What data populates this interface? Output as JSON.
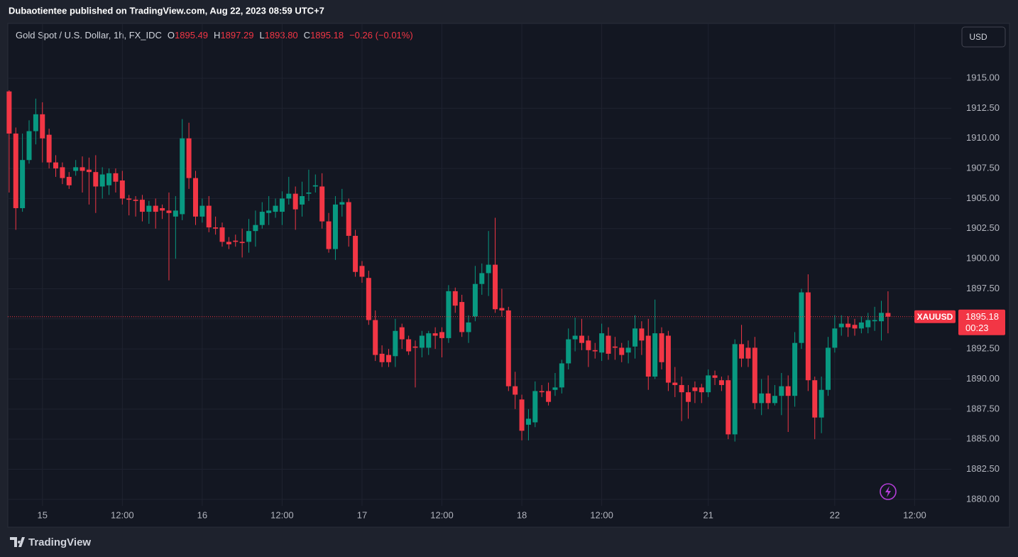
{
  "header": {
    "publisher": "Dubaotientee published on TradingView.com, Aug 22, 2023 08:59 UTC+7"
  },
  "chart_data": {
    "type": "candlestick",
    "title": "Gold Spot / U.S. Dollar, 1h, FX_IDC",
    "ohlc_legend": [
      {
        "key": "O",
        "value": "1895.49"
      },
      {
        "key": "H",
        "value": "1897.29"
      },
      {
        "key": "L",
        "value": "1893.80"
      },
      {
        "key": "C",
        "value": "1895.18"
      }
    ],
    "change_label": "−0.26 (−0.01%)",
    "currency": "USD",
    "up_color": "#089981",
    "down_color": "#f23645",
    "open": [
      1913.9,
      1910.4,
      1904.2,
      1908.2,
      1910.6,
      1912.0,
      1910.3,
      1908.0,
      1907.6,
      1906.8,
      1907.3,
      1907.6,
      1907.4,
      1907.2,
      1906.0,
      1906.1,
      1907.1,
      1906.5,
      1905.0,
      1904.9,
      1904.9,
      1903.9,
      1904.4,
      1904.2,
      1904.0,
      1903.5,
      1903.7,
      1910.0,
      1906.7,
      1903.5,
      1904.4,
      1902.6,
      1902.6,
      1901.4,
      1901.5,
      1901.4,
      1901.4,
      1902.3,
      1902.8,
      1903.8,
      1903.9,
      1903.9,
      1905.0,
      1905.4,
      1904.5,
      1905.4,
      1906.0,
      1906.0,
      1903.1,
      1900.8,
      1904.5,
      1904.7,
      1901.9,
      1899.4,
      1898.4,
      1894.9,
      1892.1,
      1892.0,
      1891.9,
      1894.3,
      1893.3,
      1892.7,
      1892.6,
      1892.6,
      1893.8,
      1893.9,
      1893.4,
      1897.3,
      1896.4,
      1893.9,
      1895.2,
      1897.9,
      1898.8,
      1899.5,
      1895.9,
      1895.7,
      1889.4,
      1888.3,
      1886.2,
      1886.4,
      1889.0,
      1889.0,
      1889.1,
      1889.3,
      1891.3,
      1893.3,
      1893.6,
      1893.2,
      1892.4,
      1892.2,
      1893.6,
      1892.7,
      1892.6,
      1892.2,
      1892.7,
      1894.2,
      1893.6,
      1890.2,
      1893.8,
      1893.6,
      1889.7,
      1889.5,
      1888.9,
      1889.3,
      1889.3,
      1888.9,
      1890.3,
      1889.9,
      1889.9,
      1885.4,
      1892.9,
      1892.6,
      1892.6,
      1888.0,
      1888.8,
      1888.0,
      1888.6,
      1889.4,
      1888.6,
      1893.0,
      1897.2,
      1889.9,
      1886.8,
      1889.1,
      1892.6,
      1894.3,
      1894.6,
      1894.5,
      1894.2,
      1894.3,
      1894.8,
      1894.8,
      1895.49
    ],
    "high": [
      1914.0,
      1910.9,
      1910.4,
      1911.5,
      1913.3,
      1913.0,
      1910.8,
      1908.6,
      1908.0,
      1907.2,
      1908.2,
      1908.5,
      1908.4,
      1908.6,
      1907.6,
      1907.5,
      1907.5,
      1907.3,
      1905.3,
      1905.2,
      1905.3,
      1904.8,
      1905.0,
      1904.5,
      1905.5,
      1905.2,
      1911.6,
      1911.3,
      1907.3,
      1905.0,
      1905.2,
      1903.5,
      1903.0,
      1901.8,
      1902.0,
      1902.5,
      1903.3,
      1904.0,
      1904.7,
      1905.2,
      1905.0,
      1905.6,
      1906.8,
      1906.0,
      1906.4,
      1907.4,
      1907.0,
      1907.1,
      1903.8,
      1905.2,
      1905.8,
      1905.0,
      1902.4,
      1899.8,
      1899.0,
      1895.7,
      1892.8,
      1892.5,
      1895.0,
      1894.6,
      1893.6,
      1893.2,
      1894.0,
      1894.0,
      1894.3,
      1894.3,
      1897.8,
      1897.6,
      1897.0,
      1895.3,
      1899.4,
      1899.6,
      1902.3,
      1903.4,
      1897.5,
      1896.0,
      1890.6,
      1888.7,
      1887.5,
      1889.8,
      1889.5,
      1889.7,
      1890.5,
      1891.6,
      1894.2,
      1895.1,
      1895.0,
      1893.6,
      1893.0,
      1894.6,
      1894.3,
      1893.5,
      1893.0,
      1893.2,
      1895.3,
      1894.8,
      1895.0,
      1896.6,
      1894.3,
      1894.0,
      1891.0,
      1890.2,
      1889.5,
      1889.8,
      1889.6,
      1890.8,
      1890.7,
      1890.2,
      1890.3,
      1893.3,
      1894.5,
      1893.2,
      1893.5,
      1890.0,
      1890.3,
      1889.5,
      1890.5,
      1890.3,
      1893.9,
      1897.5,
      1898.7,
      1890.2,
      1890.2,
      1893.5,
      1895.3,
      1895.3,
      1895.2,
      1895.0,
      1895.2,
      1895.5,
      1896.0,
      1896.5,
      1897.29
    ],
    "low": [
      1905.5,
      1902.4,
      1903.9,
      1907.9,
      1909.5,
      1908.0,
      1907.5,
      1906.8,
      1906.2,
      1905.8,
      1906.9,
      1905.5,
      1904.5,
      1903.8,
      1905.0,
      1905.3,
      1905.5,
      1904.5,
      1903.6,
      1903.5,
      1903.1,
      1902.9,
      1902.5,
      1903.3,
      1898.2,
      1900.0,
      1903.2,
      1905.8,
      1902.8,
      1903.0,
      1902.2,
      1902.0,
      1901.0,
      1900.8,
      1901.0,
      1900.1,
      1900.5,
      1901.0,
      1902.5,
      1902.8,
      1903.4,
      1902.8,
      1904.5,
      1902.4,
      1903.5,
      1904.8,
      1905.5,
      1902.5,
      1900.5,
      1899.9,
      1903.5,
      1901.0,
      1898.5,
      1898.0,
      1894.5,
      1891.5,
      1891.0,
      1891.0,
      1891.0,
      1892.5,
      1892.0,
      1889.3,
      1891.8,
      1892.0,
      1892.5,
      1891.8,
      1893.0,
      1895.5,
      1893.5,
      1893.0,
      1894.8,
      1897.0,
      1896.9,
      1895.5,
      1895.2,
      1889.0,
      1887.5,
      1884.9,
      1884.9,
      1886.0,
      1888.5,
      1887.8,
      1888.6,
      1888.8,
      1890.8,
      1892.3,
      1892.4,
      1891.0,
      1891.7,
      1891.5,
      1891.6,
      1891.6,
      1891.4,
      1891.3,
      1891.7,
      1892.0,
      1889.1,
      1890.0,
      1890.8,
      1889.0,
      1888.5,
      1886.5,
      1886.7,
      1888.0,
      1888.0,
      1888.5,
      1889.5,
      1889.0,
      1885.0,
      1884.8,
      1891.0,
      1891.0,
      1887.5,
      1887.0,
      1887.5,
      1887.8,
      1887.0,
      1885.6,
      1887.7,
      1892.5,
      1889.0,
      1885.0,
      1885.5,
      1888.6,
      1892.2,
      1893.6,
      1893.5,
      1893.6,
      1893.8,
      1893.8,
      1894.0,
      1893.2,
      1893.8
    ],
    "close": [
      1910.4,
      1904.2,
      1908.2,
      1910.6,
      1912.0,
      1910.0,
      1908.0,
      1907.5,
      1906.7,
      1906.1,
      1907.6,
      1907.3,
      1907.2,
      1906.0,
      1907.0,
      1907.1,
      1906.4,
      1905.0,
      1904.9,
      1904.8,
      1903.9,
      1904.4,
      1903.9,
      1904.0,
      1903.8,
      1904.0,
      1910.0,
      1906.7,
      1903.5,
      1904.4,
      1902.6,
      1902.5,
      1901.4,
      1901.2,
      1901.4,
      1901.3,
      1902.3,
      1902.8,
      1903.9,
      1904.0,
      1904.4,
      1905.0,
      1905.4,
      1904.1,
      1905.2,
      1905.5,
      1906.1,
      1903.1,
      1900.8,
      1904.5,
      1904.7,
      1901.9,
      1898.9,
      1898.5,
      1894.9,
      1892.0,
      1891.4,
      1891.4,
      1894.0,
      1893.3,
      1892.3,
      1892.6,
      1893.6,
      1893.8,
      1893.6,
      1893.4,
      1897.3,
      1896.1,
      1893.9,
      1894.7,
      1897.9,
      1898.8,
      1899.5,
      1895.8,
      1895.7,
      1889.4,
      1888.7,
      1885.7,
      1886.7,
      1889.0,
      1888.9,
      1888.1,
      1889.3,
      1891.3,
      1893.3,
      1893.6,
      1893.0,
      1892.4,
      1892.3,
      1893.8,
      1892.1,
      1892.6,
      1892.0,
      1892.6,
      1894.2,
      1893.2,
      1890.2,
      1893.8,
      1891.4,
      1889.7,
      1889.5,
      1888.9,
      1888.1,
      1889.0,
      1888.9,
      1890.3,
      1890.1,
      1889.5,
      1885.4,
      1892.9,
      1891.7,
      1891.7,
      1888.0,
      1888.8,
      1888.0,
      1888.6,
      1889.4,
      1888.6,
      1893.0,
      1897.2,
      1889.9,
      1886.8,
      1889.1,
      1892.6,
      1894.2,
      1894.6,
      1894.3,
      1894.2,
      1894.7,
      1894.9,
      1894.9,
      1895.5,
      1895.18
    ],
    "xlim": [
      -0.2,
      141.5
    ],
    "xticks": [
      {
        "value": 5,
        "label": "15"
      },
      {
        "value": 17,
        "label": "12:00"
      },
      {
        "value": 29,
        "label": "16"
      },
      {
        "value": 41,
        "label": "12:00"
      },
      {
        "value": 53,
        "label": "17"
      },
      {
        "value": 65,
        "label": "12:00"
      },
      {
        "value": 77,
        "label": "18"
      },
      {
        "value": 89,
        "label": "12:00"
      },
      {
        "value": 105,
        "label": "21"
      },
      {
        "value": 124,
        "label": "22"
      },
      {
        "value": 136,
        "label": "12:00"
      }
    ],
    "ylim": [
      1879.46,
      1919.55
    ],
    "yticks": [
      {
        "value": 1880,
        "label": "1880.00"
      },
      {
        "value": 1882.5,
        "label": "1882.50"
      },
      {
        "value": 1885,
        "label": "1885.00"
      },
      {
        "value": 1887.5,
        "label": "1887.50"
      },
      {
        "value": 1890,
        "label": "1890.00"
      },
      {
        "value": 1892.5,
        "label": "1892.50"
      },
      {
        "value": 1895,
        "label": "1895.00"
      },
      {
        "value": 1897.5,
        "label": "1897.50"
      },
      {
        "value": 1900,
        "label": "1900.00"
      },
      {
        "value": 1902.5,
        "label": "1902.50"
      },
      {
        "value": 1905,
        "label": "1905.00"
      },
      {
        "value": 1907.5,
        "label": "1907.50"
      },
      {
        "value": 1910,
        "label": "1910.00"
      },
      {
        "value": 1912.5,
        "label": "1912.50"
      },
      {
        "value": 1915,
        "label": "1915.00"
      }
    ],
    "grid": true,
    "last_price": {
      "symbol": "XAUUSD",
      "label": "1895.18",
      "countdown": "00:23"
    }
  },
  "footer": {
    "brand": "TradingView"
  }
}
